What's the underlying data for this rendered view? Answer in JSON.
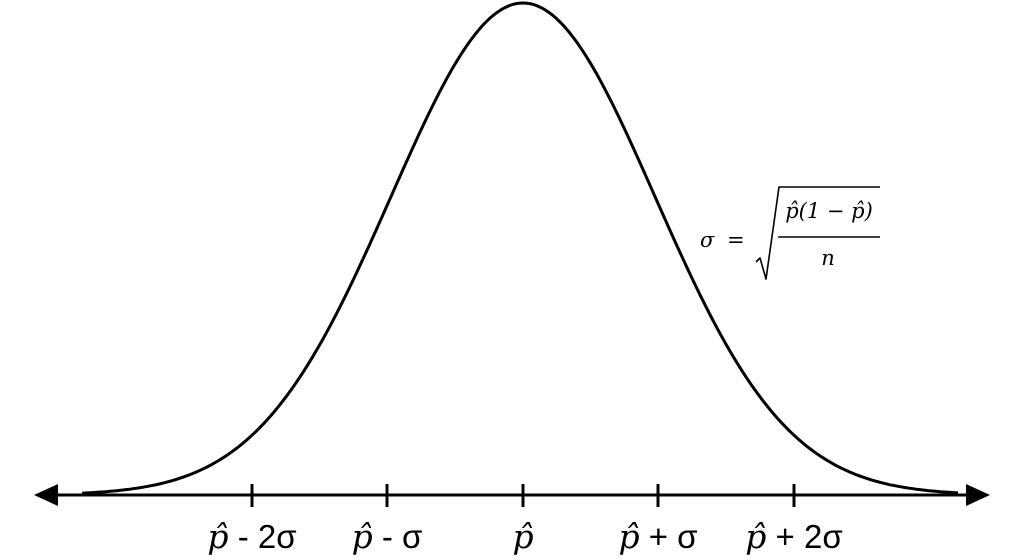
{
  "diagram": {
    "tick_labels": [
      {
        "symbol": "p̂",
        "suffix": " - 2σ"
      },
      {
        "symbol": "p̂",
        "suffix": " - σ"
      },
      {
        "symbol": "p̂",
        "suffix": ""
      },
      {
        "symbol": "p̂",
        "suffix": " + σ"
      },
      {
        "symbol": "p̂",
        "suffix": " + 2σ"
      }
    ],
    "formula": {
      "lhs": "σ",
      "equals": "=",
      "numerator": "p̂(1 − p̂)",
      "denominator": "n"
    },
    "colors": {
      "stroke": "#000000",
      "background": "#ffffff"
    }
  }
}
